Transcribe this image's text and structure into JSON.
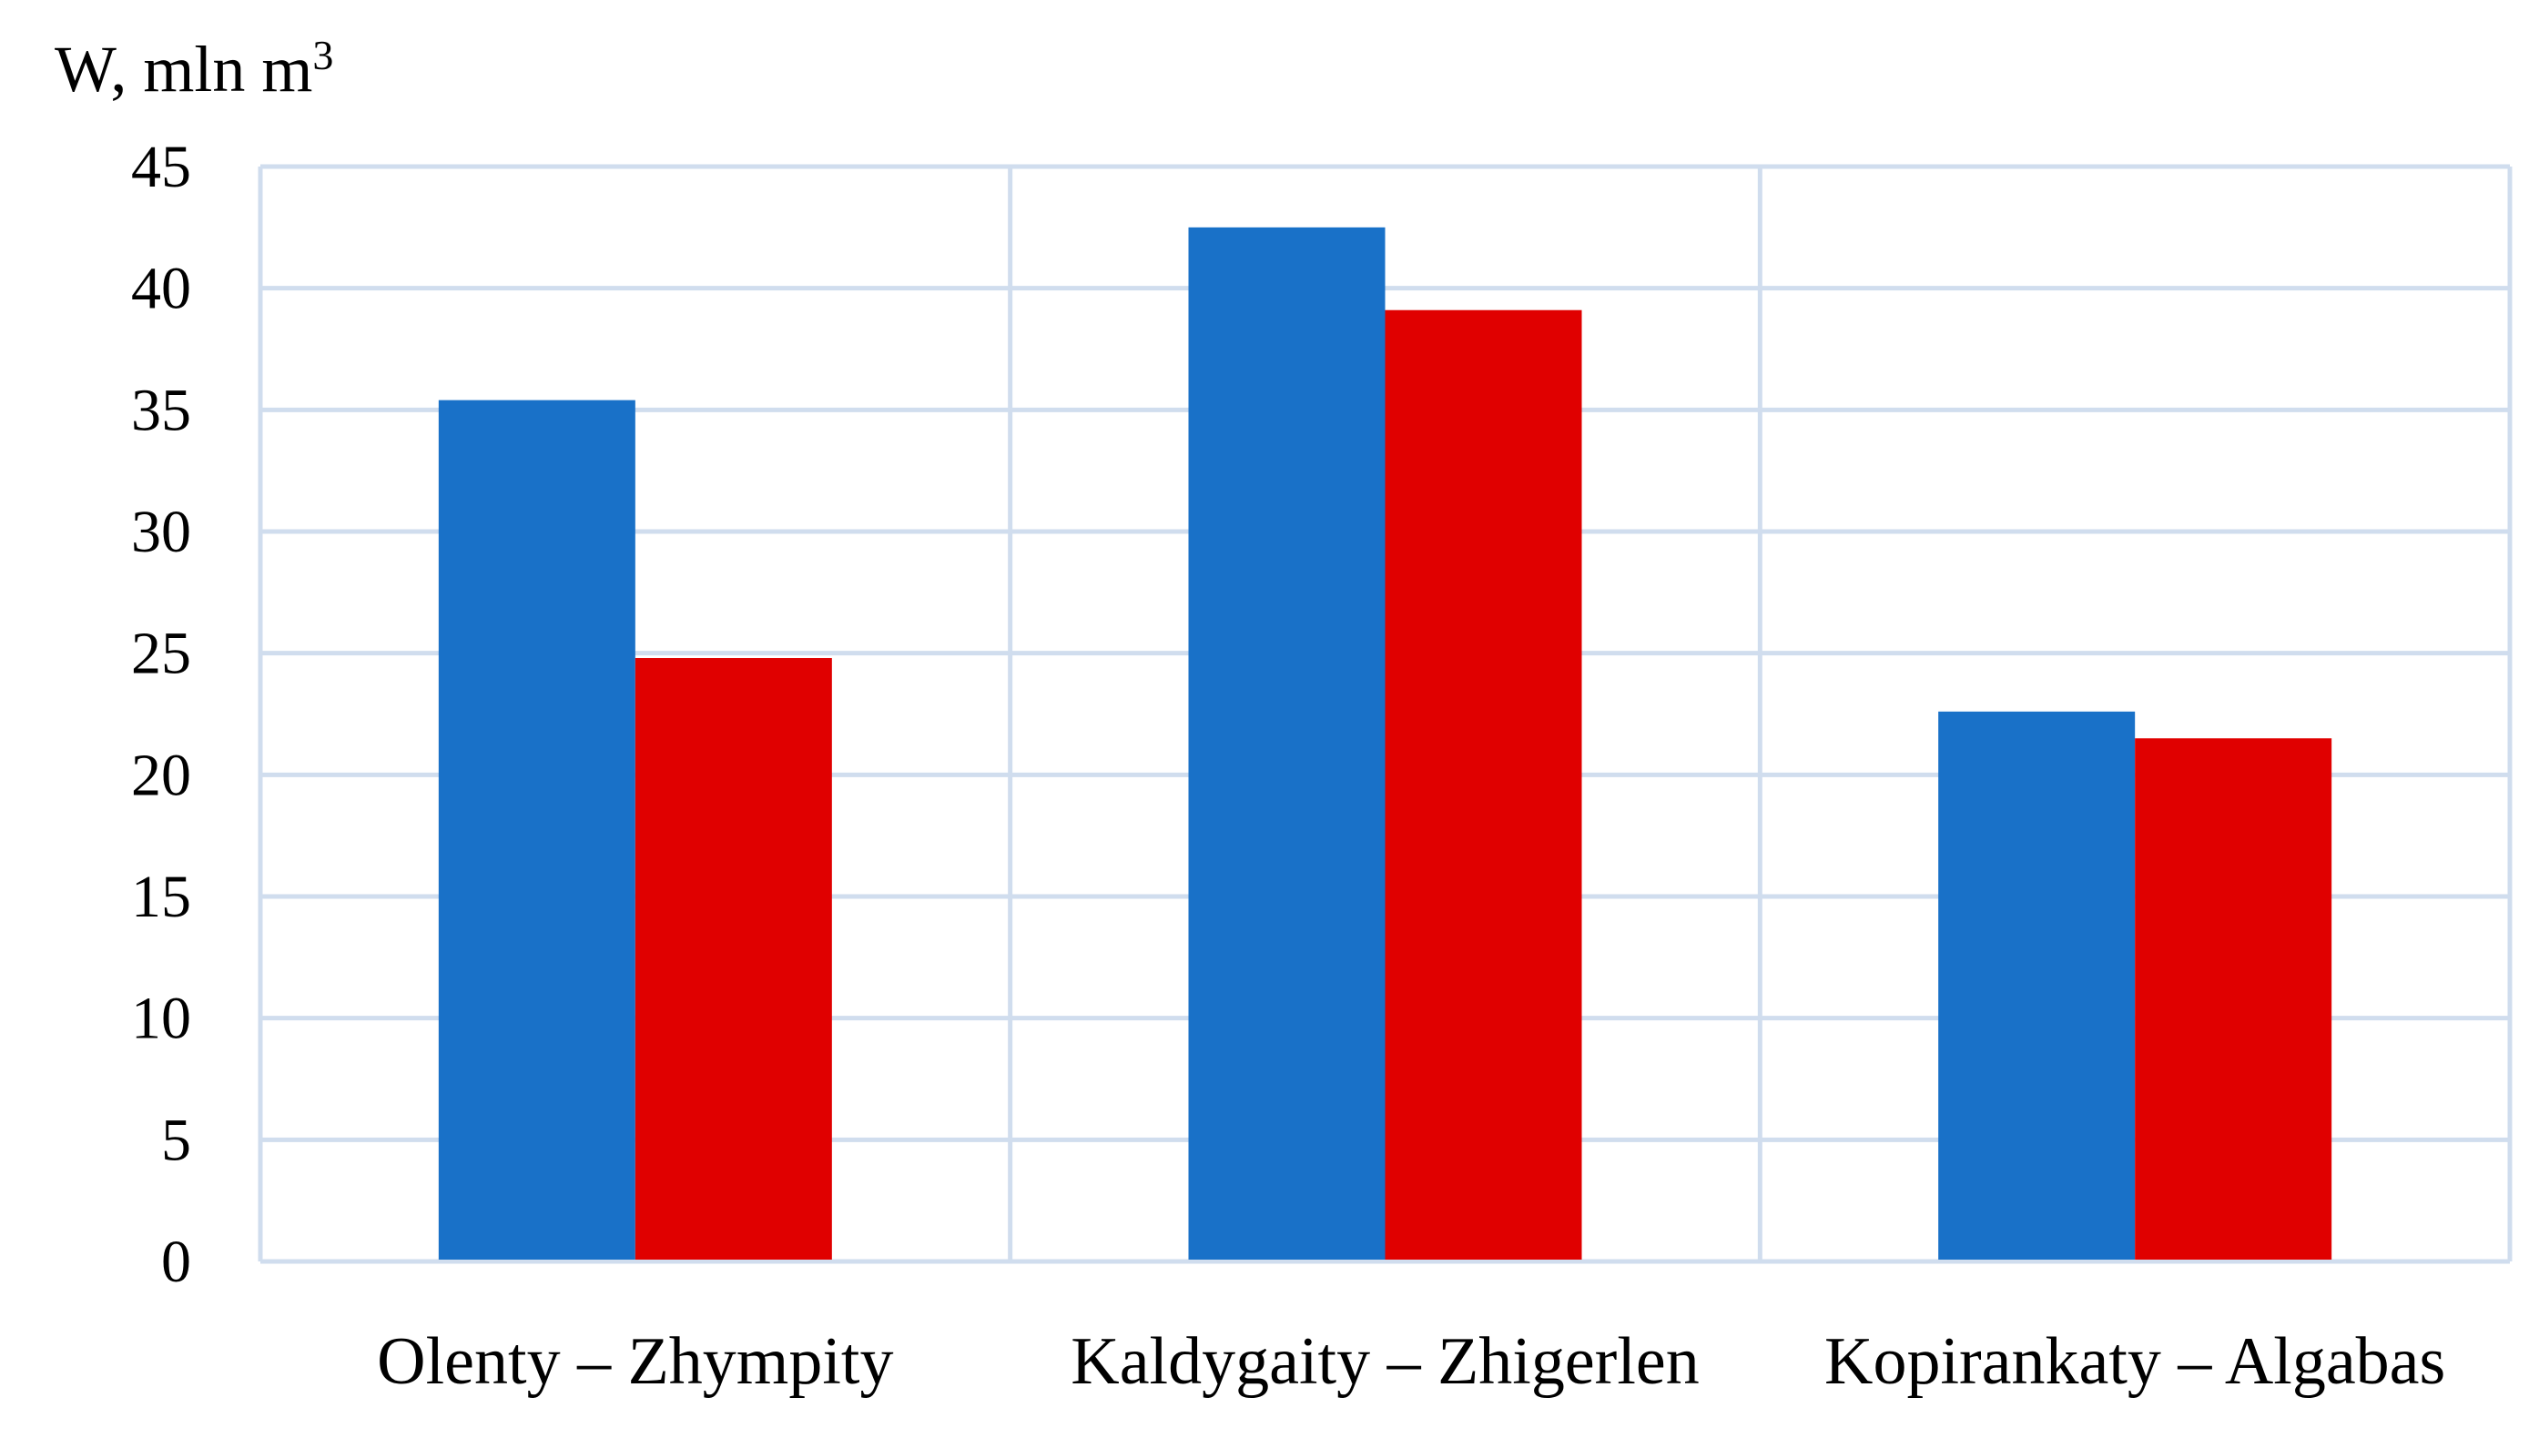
{
  "chart_data": {
    "type": "bar",
    "ylabel": "W, mln m",
    "ylabel_superscript": "3",
    "categories": [
      "Olenty – Zhympity",
      "Kaldygaity – Zhigerlen",
      "Kopirankaty – Algabas"
    ],
    "series": [
      {
        "values": [
          35.4,
          42.5,
          22.6
        ],
        "color": "#1971C8"
      },
      {
        "values": [
          24.8,
          39.1,
          21.5
        ],
        "color": "#E00000"
      }
    ],
    "ylim": [
      0,
      45
    ],
    "yticks": [
      0,
      5,
      10,
      15,
      20,
      25,
      30,
      35,
      40,
      45
    ],
    "grid": true,
    "grid_color": "#D0DDEE",
    "legend": "none"
  }
}
